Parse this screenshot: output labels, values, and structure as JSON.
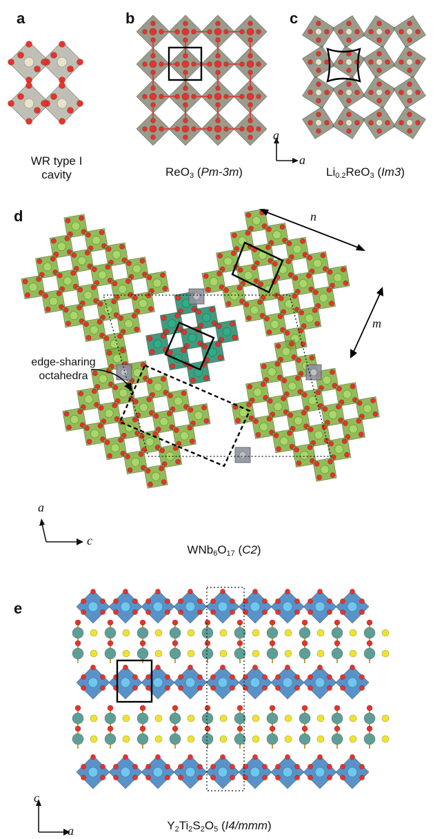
{
  "panels": {
    "a": {
      "letter": "a",
      "caption_line1": "WR type I",
      "caption_line2": "cavity"
    },
    "b": {
      "letter": "b",
      "formula": "ReO",
      "formula_sub": "3",
      "space_group": "Pm-3m"
    },
    "c": {
      "letter": "c",
      "formula_prefix": "Li",
      "prefix_sub": "0.2",
      "formula_mid": "ReO",
      "mid_sub": "3",
      "space_group": "Im3"
    },
    "d": {
      "letter": "d",
      "formula_w": "WNb",
      "sub1": "6",
      "formula_o": "O",
      "sub2": "17",
      "space_group": "C2",
      "callout_line1": "edge-sharing",
      "callout_line2": "octahedra",
      "label_n": "n",
      "label_m": "m"
    },
    "e": {
      "letter": "e",
      "f1": "Y",
      "s1": "2",
      "f2": "Ti",
      "s2": "2",
      "f3": "S",
      "s3": "2",
      "f4": "O",
      "s4": "5",
      "space_group": "I4/mmm"
    }
  },
  "axes": {
    "bc": {
      "vertical": "a",
      "horizontal": "a"
    },
    "d": {
      "vertical": "a",
      "horizontal": "c"
    },
    "e": {
      "vertical": "c",
      "horizontal": "a"
    }
  },
  "colors": {
    "oxygen": "#e8322a",
    "reo3_octa": "#8a8a78",
    "rhenium": "#e8e4cc",
    "nb_octa": "#7fb03c",
    "nb_atom": "#a9d86a",
    "w_block": "#1f8a6a",
    "w_atom": "#2fae86",
    "w_tet": "#8f929c",
    "ti_octa": "#3b7fbf",
    "ti_atom": "#6fc6ee",
    "yttrium": "#5e9e96",
    "sulfur": "#efe42a"
  },
  "icons": {
    "arrow": "arrow-icon",
    "square": "unit-cell-square"
  }
}
